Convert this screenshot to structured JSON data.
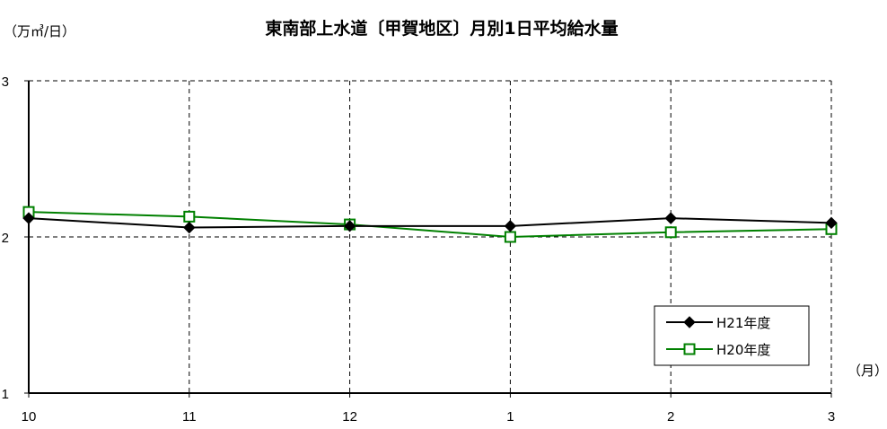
{
  "chart_data": {
    "type": "line",
    "title": "東南部上水道〔甲賀地区〕月別1日平均給水量",
    "ylabel": "（万㎥/日）",
    "xlabel": "（月）",
    "categories": [
      "10",
      "11",
      "12",
      "1",
      "2",
      "3"
    ],
    "y_ticks": [
      "1",
      "2",
      "3"
    ],
    "ylim": [
      1,
      3
    ],
    "grid": true,
    "legend_position": "bottom-right",
    "series": [
      {
        "name": "H21年度",
        "color": "#000000",
        "marker": "filled-diamond",
        "values": [
          2.12,
          2.06,
          2.07,
          2.07,
          2.12,
          2.09
        ]
      },
      {
        "name": "H20年度",
        "color": "#008000",
        "marker": "open-square",
        "values": [
          2.16,
          2.13,
          2.08,
          2.0,
          2.03,
          2.05
        ]
      }
    ]
  }
}
